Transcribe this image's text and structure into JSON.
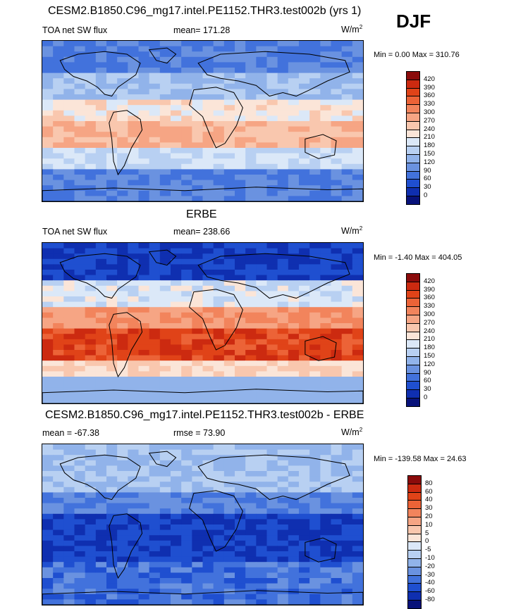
{
  "season": "DJF",
  "panels": [
    {
      "id": "model",
      "title": "CESM2.B1850.C96_mg17.intel.PE1152.THR3.test002b (yrs 1)",
      "left_label": "TOA net SW flux",
      "center_label": "mean= 171.28",
      "units_base": "W/m",
      "units_exp": "2",
      "minmax": "Min =   0.00 Max = 310.76",
      "levels": [
        "420",
        "390",
        "360",
        "330",
        "300",
        "270",
        "240",
        "210",
        "180",
        "150",
        "120",
        "90",
        "60",
        "30",
        "0"
      ],
      "colors": [
        "#8b0b0b",
        "#cc2a10",
        "#e04318",
        "#ec6337",
        "#f2845c",
        "#f6a584",
        "#f9c7ae",
        "#fbe5d8",
        "#dbe8f8",
        "#b8d0f2",
        "#91b3ea",
        "#6a92e0",
        "#4272dc",
        "#1f4fd0",
        "#0f2fb0",
        "#08127a"
      ],
      "field": "model"
    },
    {
      "id": "obs",
      "title": "ERBE",
      "left_label": "TOA net SW flux",
      "center_label": "mean= 238.66",
      "units_base": "W/m",
      "units_exp": "2",
      "minmax": "Min =  -1.40 Max = 404.05",
      "levels": [
        "420",
        "390",
        "360",
        "330",
        "300",
        "270",
        "240",
        "210",
        "180",
        "150",
        "120",
        "90",
        "60",
        "30",
        "0"
      ],
      "colors": [
        "#8b0b0b",
        "#cc2a10",
        "#e04318",
        "#ec6337",
        "#f2845c",
        "#f6a584",
        "#f9c7ae",
        "#fbe5d8",
        "#dbe8f8",
        "#b8d0f2",
        "#91b3ea",
        "#6a92e0",
        "#4272dc",
        "#1f4fd0",
        "#0f2fb0",
        "#08127a"
      ],
      "field": "obs"
    },
    {
      "id": "diff",
      "title": "CESM2.B1850.C96_mg17.intel.PE1152.THR3.test002b - ERBE",
      "left_label": "mean = -67.38",
      "center_label": "rmse =  73.90",
      "units_base": "W/m",
      "units_exp": "2",
      "minmax": "Min = -139.58 Max =  24.63",
      "levels": [
        "80",
        "60",
        "40",
        "30",
        "20",
        "10",
        "5",
        "0",
        "-5",
        "-10",
        "-20",
        "-30",
        "-40",
        "-60",
        "-80"
      ],
      "colors": [
        "#8b0b0b",
        "#cc2a10",
        "#e04318",
        "#ec6337",
        "#f2845c",
        "#f6a584",
        "#f9c7ae",
        "#fbe5d8",
        "#dbe8f8",
        "#b8d0f2",
        "#91b3ea",
        "#6a92e0",
        "#4272dc",
        "#1f4fd0",
        "#0f2fb0",
        "#08127a"
      ],
      "field": "diff"
    }
  ],
  "chart_data": [
    {
      "type": "heatmap",
      "title": "CESM2.B1850.C96_mg17.intel.PE1152.THR3.test002b (yrs 1)",
      "variable": "TOA net SW flux",
      "units": "W/m2",
      "mean": 171.28,
      "min": 0.0,
      "max": 310.76,
      "contour_levels": [
        0,
        30,
        60,
        90,
        120,
        150,
        180,
        210,
        240,
        270,
        300,
        330,
        360,
        390,
        420
      ]
    },
    {
      "type": "heatmap",
      "title": "ERBE",
      "variable": "TOA net SW flux",
      "units": "W/m2",
      "mean": 238.66,
      "min": -1.4,
      "max": 404.05,
      "contour_levels": [
        0,
        30,
        60,
        90,
        120,
        150,
        180,
        210,
        240,
        270,
        300,
        330,
        360,
        390,
        420
      ]
    },
    {
      "type": "heatmap",
      "title": "CESM2.B1850.C96_mg17.intel.PE1152.THR3.test002b - ERBE",
      "units": "W/m2",
      "mean": -67.38,
      "rmse": 73.9,
      "min": -139.58,
      "max": 24.63,
      "contour_levels": [
        -80,
        -60,
        -40,
        -30,
        -20,
        -10,
        -5,
        0,
        5,
        10,
        20,
        30,
        40,
        60,
        80
      ]
    }
  ]
}
